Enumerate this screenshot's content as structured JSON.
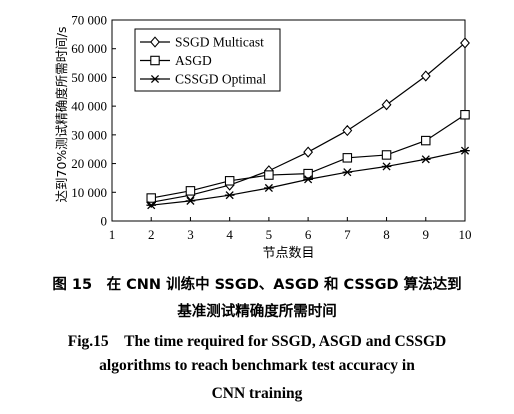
{
  "chart_data": {
    "type": "line",
    "x": [
      2,
      3,
      4,
      5,
      6,
      7,
      8,
      9,
      10
    ],
    "series": [
      {
        "name": "SSGD Multicast",
        "marker": "diamond",
        "values": [
          6500,
          9000,
          12500,
          17500,
          24000,
          31500,
          40500,
          50500,
          62000
        ]
      },
      {
        "name": "ASGD",
        "marker": "square",
        "values": [
          8000,
          10500,
          14000,
          16000,
          16500,
          22000,
          23000,
          28000,
          37000
        ]
      },
      {
        "name": "CSSGD Optimal",
        "marker": "asterisk",
        "values": [
          5500,
          7000,
          9000,
          11500,
          14500,
          17000,
          19000,
          21500,
          24500
        ]
      }
    ],
    "xlabel": "节点数目",
    "ylabel": "达到70%测试精确度所需时间/s",
    "xlim": [
      1,
      10
    ],
    "ylim": [
      0,
      70000
    ],
    "xticks": [
      "1",
      "2",
      "3",
      "4",
      "5",
      "6",
      "7",
      "8",
      "9",
      "10"
    ],
    "yticks": [
      "0",
      "10 000",
      "20 000",
      "30 000",
      "40 000",
      "50 000",
      "60 000",
      "70 000"
    ],
    "grid": false,
    "legend_position": "top-left",
    "line_color": "#000000"
  },
  "caption": {
    "zh_line1": "图 15　在 CNN 训练中 SSGD、ASGD 和 CSSGD 算法达到",
    "zh_line2": "基准测试精确度所需时间",
    "en_line1": "Fig.15　The time required for SSGD, ASGD and CSSGD",
    "en_line2": "algorithms to reach benchmark test accuracy in",
    "en_line3": "CNN training"
  }
}
